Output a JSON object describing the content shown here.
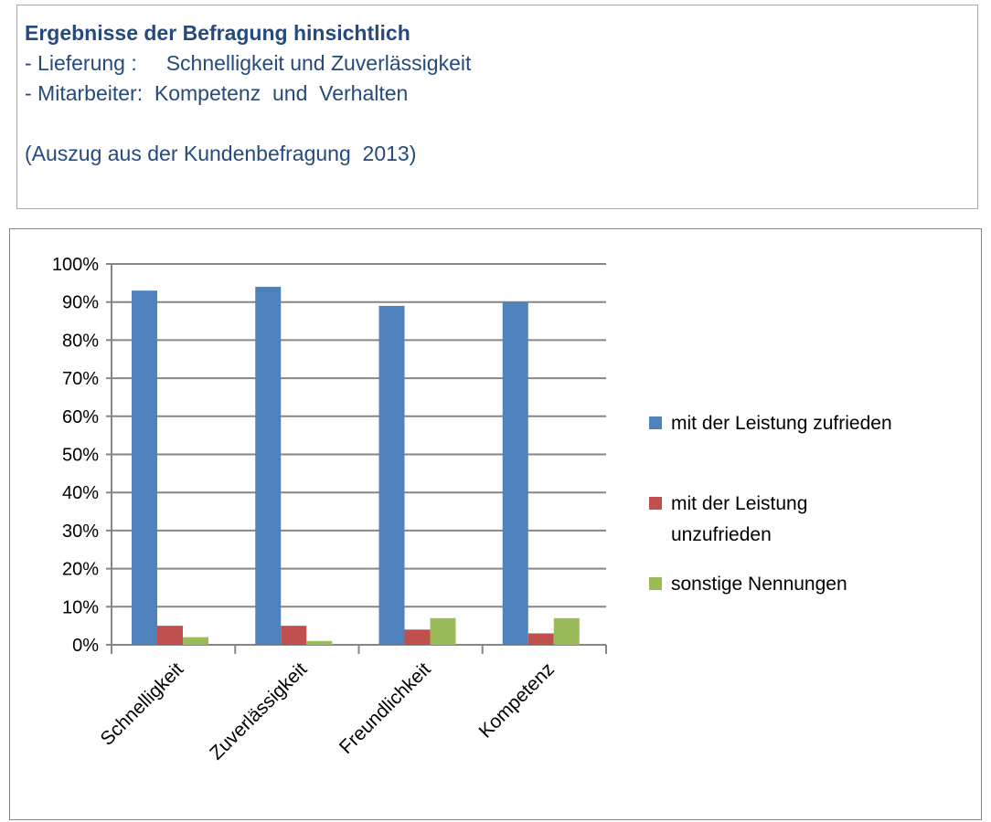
{
  "header": {
    "line1": "Ergebnisse der Befragung hinsichtlich",
    "line2": "- Lieferung :     Schnelligkeit und Zuverlässigkeit",
    "line3": "- Mitarbeiter:  Kompetenz  und  Verhalten",
    "line4": "(Auszug aus der Kundenbefragung  2013)"
  },
  "chart_data": {
    "type": "bar",
    "categories": [
      "Schnelligkeit",
      "Zuverlässigkeit",
      "Freundlichkeit",
      "Kompetenz"
    ],
    "series": [
      {
        "name": "mit der Leistung zufrieden",
        "color": "#4f81bd",
        "values": [
          93,
          94,
          89,
          90
        ]
      },
      {
        "name": "mit der Leistung unzufrieden",
        "color": "#c0504d",
        "values": [
          5,
          5,
          4,
          3
        ]
      },
      {
        "name": "sonstige Nennungen",
        "color": "#9bbb59",
        "values": [
          2,
          1,
          7,
          7
        ]
      }
    ],
    "yticks": [
      "0%",
      "10%",
      "20%",
      "30%",
      "40%",
      "50%",
      "60%",
      "70%",
      "80%",
      "90%",
      "100%"
    ],
    "ylim": [
      0,
      100
    ],
    "grid": true,
    "legend": "right"
  }
}
